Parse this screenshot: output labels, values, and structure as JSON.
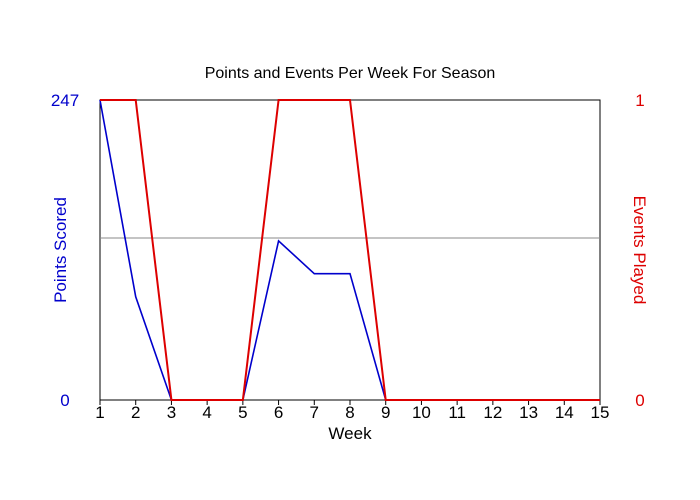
{
  "chart_data": {
    "type": "line",
    "title": "Points and Events Per Week For Season",
    "xlabel": "Week",
    "x": [
      1,
      2,
      3,
      4,
      5,
      6,
      7,
      8,
      9,
      10,
      11,
      12,
      13,
      14,
      15
    ],
    "x_tick_labels": [
      "1",
      "2",
      "3",
      "4",
      "5",
      "6",
      "7",
      "8",
      "9",
      "10",
      "11",
      "12",
      "13",
      "14",
      "15"
    ],
    "xlim": [
      1,
      15
    ],
    "grid": false,
    "axes": {
      "left": {
        "label": "Points Scored",
        "range": [
          0,
          247
        ],
        "tick_labels": [
          "0",
          "247"
        ],
        "color": "#0000cc"
      },
      "right": {
        "label": "Events Played",
        "range": [
          0,
          1
        ],
        "tick_labels": [
          "0",
          "1"
        ],
        "color": "#dd0000"
      }
    },
    "series": [
      {
        "axis": "left",
        "color": "#0000cc",
        "values": [
          247,
          85,
          0,
          0,
          0,
          131,
          104,
          104,
          0,
          0,
          0,
          0,
          0,
          0,
          0
        ]
      },
      {
        "axis": "right",
        "color": "#dd0000",
        "values": [
          1,
          1,
          0,
          0,
          0,
          1,
          1,
          1,
          0,
          0,
          0,
          0,
          0,
          0,
          0
        ]
      }
    ],
    "reference_line": {
      "axis": "right",
      "value": 0.54,
      "color": "#888888"
    }
  }
}
